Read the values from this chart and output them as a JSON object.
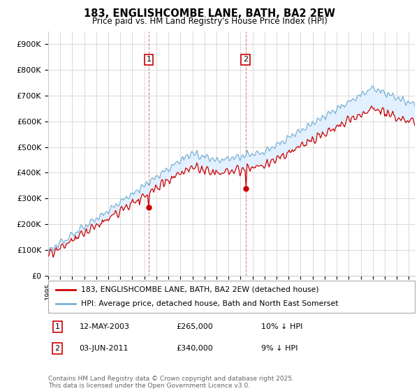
{
  "title": "183, ENGLISHCOMBE LANE, BATH, BA2 2EW",
  "subtitle": "Price paid vs. HM Land Registry's House Price Index (HPI)",
  "ylabel_ticks": [
    "£0",
    "£100K",
    "£200K",
    "£300K",
    "£400K",
    "£500K",
    "£600K",
    "£700K",
    "£800K",
    "£900K"
  ],
  "ytick_values": [
    0,
    100000,
    200000,
    300000,
    400000,
    500000,
    600000,
    700000,
    800000,
    900000
  ],
  "ylim": [
    0,
    950000
  ],
  "xlim_start": 1995.0,
  "xlim_end": 2025.5,
  "sale1_date": 2003.36,
  "sale1_price": 265000,
  "sale2_date": 2011.42,
  "sale2_price": 340000,
  "legend_line1": "183, ENGLISHCOMBE LANE, BATH, BA2 2EW (detached house)",
  "legend_line2": "HPI: Average price, detached house, Bath and North East Somerset",
  "footer": "Contains HM Land Registry data © Crown copyright and database right 2025.\nThis data is licensed under the Open Government Licence v3.0.",
  "line_color_red": "#cc0000",
  "line_color_blue": "#7ab0d4",
  "fill_color": "#ddeeff",
  "grid_color": "#cccccc",
  "background_color": "#ffffff",
  "marker_box_color": "#cc0000",
  "vline_color": "#cc6666",
  "table_row1_date": "12-MAY-2003",
  "table_row1_price": "£265,000",
  "table_row1_pct": "10% ↓ HPI",
  "table_row2_date": "03-JUN-2011",
  "table_row2_price": "£340,000",
  "table_row2_pct": "9% ↓ HPI"
}
